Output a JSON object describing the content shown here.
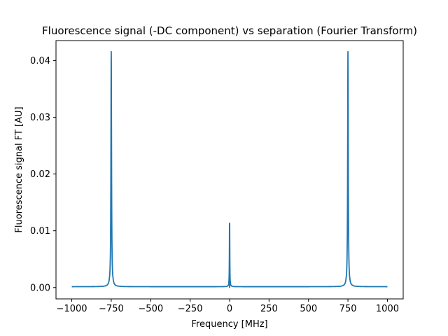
{
  "chart_data": {
    "type": "line",
    "title": "Fluorescence signal (-DC component) vs separation (Fourier Transform)",
    "xlabel": "Frequency [MHz]",
    "ylabel": "Fluorescence signal FT [AU]",
    "xlim": [
      -1100,
      1100
    ],
    "ylim": [
      -0.002,
      0.0435
    ],
    "x_ticks": [
      -1000,
      -750,
      -500,
      -250,
      0,
      250,
      500,
      750,
      1000
    ],
    "x_tick_labels": [
      "−1000",
      "−750",
      "−500",
      "−250",
      "0",
      "250",
      "500",
      "750",
      "1000"
    ],
    "y_ticks": [
      0.0,
      0.01,
      0.02,
      0.03,
      0.04
    ],
    "y_tick_labels": [
      "0.00",
      "0.01",
      "0.02",
      "0.03",
      "0.04"
    ],
    "grid": false,
    "series_color": "#1f77b4",
    "x_range": [
      -1000,
      1000
    ],
    "baseline": 0.00015,
    "peaks": [
      {
        "center": -750,
        "height": 0.0414,
        "width": 2.2
      },
      {
        "center": 0,
        "height": 0.0131,
        "width": 1.2
      },
      {
        "center": 750,
        "height": 0.0414,
        "width": 2.2
      }
    ],
    "dc_notch": {
      "center": 0,
      "value": 0.0
    }
  }
}
